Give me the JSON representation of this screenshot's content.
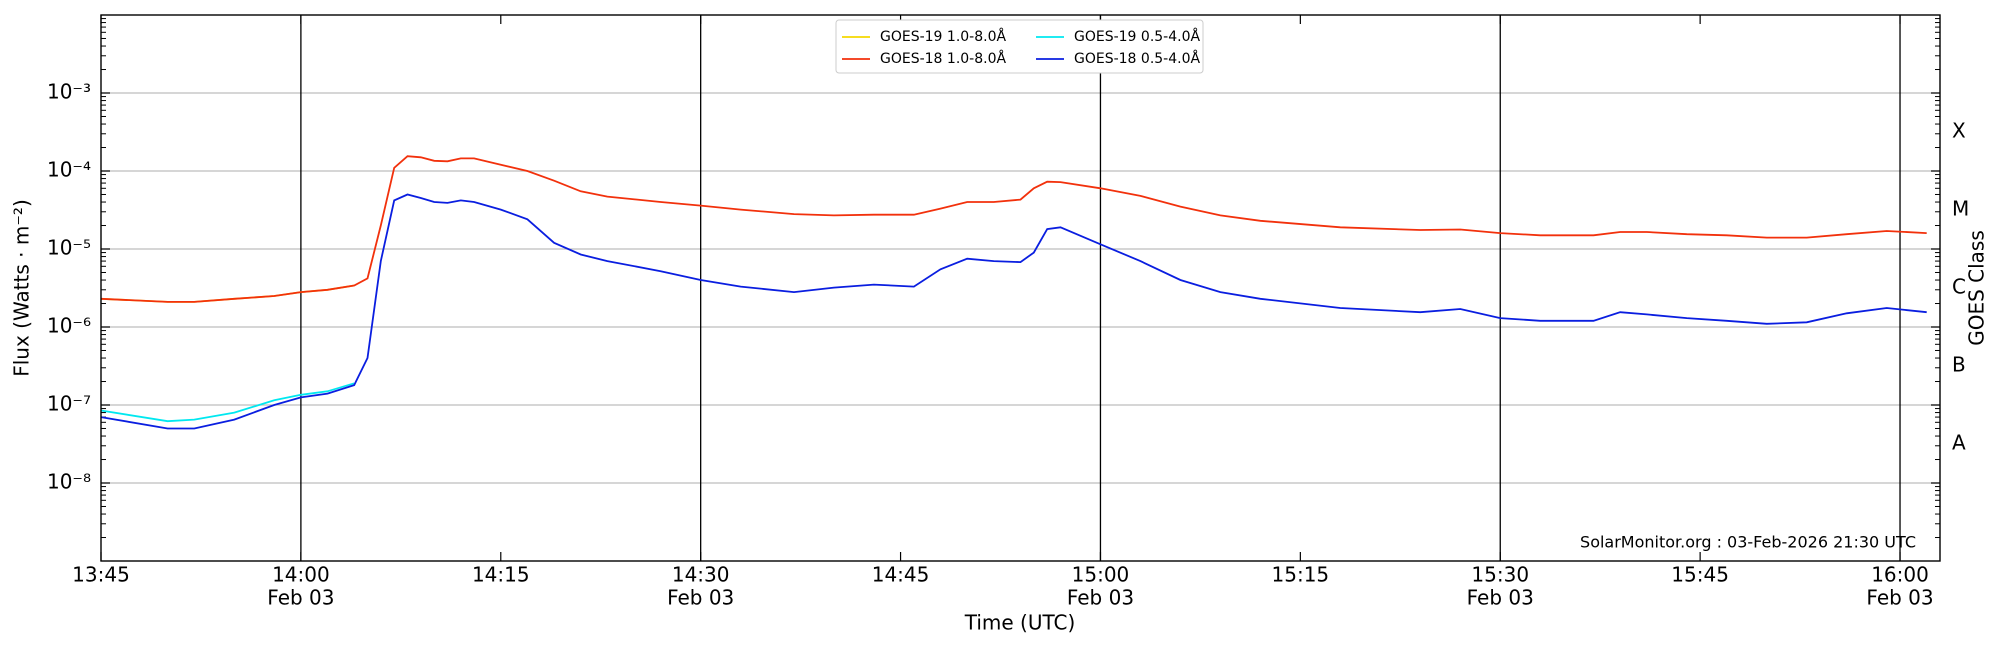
{
  "chart_data": {
    "type": "line",
    "ylabel": "Flux (Watts · m⁻²)",
    "xlabel": "Time (UTC)",
    "y2label": "GOES Class",
    "annotation": "SolarMonitor.org : 03-Feb-2026 21:30 UTC",
    "log_y": true,
    "grid": true,
    "legend": "upper center",
    "x": [
      "13:45",
      "13:50",
      "13:52",
      "13:55",
      "13:58",
      "14:00",
      "14:02",
      "14:04",
      "14:05",
      "14:06",
      "14:07",
      "14:08",
      "14:09",
      "14:10",
      "14:11",
      "14:12",
      "14:13",
      "14:15",
      "14:17",
      "14:19",
      "14:21",
      "14:23",
      "14:27",
      "14:30",
      "14:33",
      "14:37",
      "14:40",
      "14:43",
      "14:46",
      "14:48",
      "14:50",
      "14:52",
      "14:54",
      "14:55",
      "14:56",
      "14:57",
      "15:00",
      "15:03",
      "15:06",
      "15:09",
      "15:12",
      "15:18",
      "15:24",
      "15:27",
      "15:30",
      "15:33",
      "15:37",
      "15:39",
      "15:41",
      "15:44",
      "15:47",
      "15:50",
      "15:53",
      "15:56",
      "15:59",
      "16:02"
    ],
    "xlim": [
      "13:45",
      "16:03"
    ],
    "xticks": [
      {
        "value": "13:45",
        "label": "13:45"
      },
      {
        "value": "14:00",
        "label": "14:00",
        "date": "Feb 03"
      },
      {
        "value": "14:15",
        "label": "14:15"
      },
      {
        "value": "14:30",
        "label": "14:30",
        "date": "Feb 03"
      },
      {
        "value": "14:45",
        "label": "14:45"
      },
      {
        "value": "15:00",
        "label": "15:00",
        "date": "Feb 03"
      },
      {
        "value": "15:15",
        "label": "15:15"
      },
      {
        "value": "15:30",
        "label": "15:30",
        "date": "Feb 03"
      },
      {
        "value": "15:45",
        "label": "15:45"
      },
      {
        "value": "16:00",
        "label": "16:00",
        "date": "Feb 03"
      }
    ],
    "vlines": [
      "14:00",
      "14:30",
      "15:00",
      "15:30",
      "16:00"
    ],
    "ylim": [
      1e-09,
      0.01
    ],
    "yticks": [
      {
        "value": 1e-08,
        "label": "10⁻⁸"
      },
      {
        "value": 1e-07,
        "label": "10⁻⁷"
      },
      {
        "value": 1e-06,
        "label": "10⁻⁶"
      },
      {
        "value": 1e-05,
        "label": "10⁻⁵"
      },
      {
        "value": 0.0001,
        "label": "10⁻⁴"
      },
      {
        "value": 0.001,
        "label": "10⁻³"
      }
    ],
    "y2ticks": [
      {
        "value": 3.16e-08,
        "label": "A"
      },
      {
        "value": 3.16e-07,
        "label": "B"
      },
      {
        "value": 3.16e-06,
        "label": "C"
      },
      {
        "value": 3.16e-05,
        "label": "M"
      },
      {
        "value": 0.000316,
        "label": "X"
      }
    ],
    "series": [
      {
        "name": "GOES-19 1.0-8.0Å",
        "color": "#f5d800",
        "values": [
          2.3e-06,
          2.1e-06,
          2.1e-06,
          2.3e-06,
          2.5e-06,
          2.8e-06,
          3e-06,
          3.4e-06,
          null,
          null,
          null,
          null,
          null,
          null,
          null,
          null,
          null,
          null,
          null,
          null,
          null,
          null,
          null,
          null,
          null,
          null,
          null,
          null,
          null,
          null,
          null,
          null,
          null,
          null,
          null,
          null,
          null,
          null,
          null,
          null,
          null,
          null,
          null,
          null,
          null,
          null,
          null,
          null,
          null,
          null,
          null,
          null,
          null,
          null,
          null,
          null
        ]
      },
      {
        "name": "GOES-19 0.5-4.0Å",
        "color": "#00e8f0",
        "values": [
          8.5e-08,
          6.2e-08,
          6.5e-08,
          8e-08,
          1.15e-07,
          1.35e-07,
          1.5e-07,
          1.9e-07,
          null,
          null,
          null,
          null,
          null,
          null,
          null,
          null,
          null,
          null,
          null,
          null,
          null,
          null,
          null,
          null,
          null,
          null,
          null,
          null,
          null,
          null,
          null,
          null,
          null,
          null,
          null,
          null,
          null,
          null,
          null,
          null,
          null,
          null,
          null,
          null,
          null,
          null,
          null,
          null,
          null,
          null,
          null,
          null,
          null,
          null,
          null,
          null
        ]
      },
      {
        "name": "GOES-18 1.0-8.0Å",
        "color": "#f2310c",
        "values": [
          2.3e-06,
          2.1e-06,
          2.1e-06,
          2.3e-06,
          2.5e-06,
          2.8e-06,
          3e-06,
          3.4e-06,
          4.2e-06,
          2e-05,
          0.00011,
          0.000155,
          0.00015,
          0.000135,
          0.000133,
          0.000145,
          0.000145,
          0.00012,
          0.0001,
          7.5e-05,
          5.5e-05,
          4.7e-05,
          4e-05,
          3.6e-05,
          3.2e-05,
          2.8e-05,
          2.7e-05,
          2.75e-05,
          2.75e-05,
          3.3e-05,
          4e-05,
          4e-05,
          4.3e-05,
          6e-05,
          7.3e-05,
          7.2e-05,
          6e-05,
          4.8e-05,
          3.5e-05,
          2.7e-05,
          2.3e-05,
          1.9e-05,
          1.75e-05,
          1.78e-05,
          1.6e-05,
          1.5e-05,
          1.5e-05,
          1.65e-05,
          1.65e-05,
          1.55e-05,
          1.5e-05,
          1.4e-05,
          1.4e-05,
          1.55e-05,
          1.7e-05,
          1.6e-05
        ]
      },
      {
        "name": "GOES-18 0.5-4.0Å",
        "color": "#0a1ee0",
        "values": [
          7e-08,
          5e-08,
          5e-08,
          6.5e-08,
          1e-07,
          1.25e-07,
          1.4e-07,
          1.8e-07,
          4e-07,
          7e-06,
          4.2e-05,
          5e-05,
          4.5e-05,
          4e-05,
          3.9e-05,
          4.2e-05,
          4e-05,
          3.2e-05,
          2.4e-05,
          1.2e-05,
          8.5e-06,
          7e-06,
          5.2e-06,
          4e-06,
          3.3e-06,
          2.8e-06,
          3.2e-06,
          3.5e-06,
          3.3e-06,
          5.5e-06,
          7.5e-06,
          7e-06,
          6.8e-06,
          9e-06,
          1.8e-05,
          1.9e-05,
          1.15e-05,
          7e-06,
          4e-06,
          2.8e-06,
          2.3e-06,
          1.75e-06,
          1.55e-06,
          1.7e-06,
          1.3e-06,
          1.2e-06,
          1.2e-06,
          1.55e-06,
          1.45e-06,
          1.3e-06,
          1.2e-06,
          1.1e-06,
          1.15e-06,
          1.5e-06,
          1.75e-06,
          1.55e-06
        ]
      }
    ],
    "legend_order": [
      0,
      2,
      1,
      3
    ]
  }
}
